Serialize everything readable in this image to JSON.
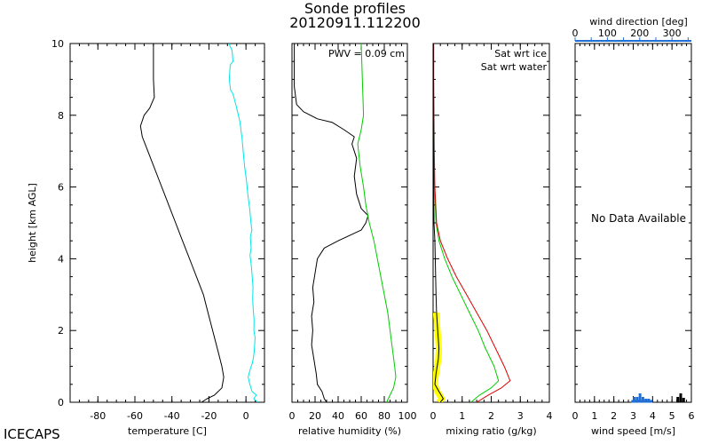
{
  "header": {
    "title": "Sonde profiles",
    "subtitle": "20120911.112200"
  },
  "footer": {
    "site_label": "ICECAPS"
  },
  "colors": {
    "temperature": "#00e5e5",
    "dewpoint": "#000000",
    "sat_ice": "#00cc00",
    "sat_water": "#dd0000",
    "mixing_ratio_highlight": "#ffff00",
    "wind_direction": "#1f6fd6"
  },
  "chart_data": [
    {
      "type": "line",
      "panel": "temperature",
      "xlabel": "temperature [C]",
      "ylabel": "height [km AGL]",
      "xlim": [
        -95,
        10
      ],
      "ylim": [
        0,
        10
      ],
      "xticks": [
        -80,
        -60,
        -40,
        -20,
        0
      ],
      "yticks": [
        0,
        2,
        4,
        6,
        8,
        10
      ],
      "series": [
        {
          "color": "#00e5e5",
          "points": [
            [
              -9.2,
              10
            ],
            [
              -7.5,
              9.8
            ],
            [
              -7,
              9.5
            ],
            [
              -8.5,
              9.4
            ],
            [
              -9,
              9
            ],
            [
              -8.3,
              8.7
            ],
            [
              -7,
              8.6
            ],
            [
              -6,
              8.4
            ],
            [
              -5,
              8.2
            ],
            [
              -3.2,
              7.8
            ],
            [
              -2.5,
              7.5
            ],
            [
              -2.2,
              7.4
            ],
            [
              -1.5,
              7
            ],
            [
              -0.8,
              6.6
            ],
            [
              0.2,
              6.2
            ],
            [
              1,
              5.8
            ],
            [
              2,
              5.4
            ],
            [
              2.7,
              5
            ],
            [
              3.2,
              4.8
            ],
            [
              2.4,
              4.6
            ],
            [
              2.8,
              4.3
            ],
            [
              2.2,
              4.1
            ],
            [
              2.9,
              3.8
            ],
            [
              3.4,
              3.5
            ],
            [
              3.8,
              3.2
            ],
            [
              3.6,
              2.9
            ],
            [
              3.9,
              2.6
            ],
            [
              4.4,
              2.3
            ],
            [
              4.3,
              2
            ],
            [
              4.9,
              1.8
            ],
            [
              4.6,
              1.5
            ],
            [
              4.2,
              1.3
            ],
            [
              3.5,
              1.1
            ],
            [
              2.2,
              0.9
            ],
            [
              1.2,
              0.7
            ],
            [
              2.1,
              0.5
            ],
            [
              3.3,
              0.3
            ],
            [
              5.6,
              0.2
            ],
            [
              4.2,
              0.1
            ],
            [
              6.6,
              0
            ]
          ]
        },
        {
          "color": "#000000",
          "points": [
            [
              -50,
              10
            ],
            [
              -50,
              9.5
            ],
            [
              -50,
              9
            ],
            [
              -49.5,
              8.5
            ],
            [
              -52,
              8.2
            ],
            [
              -55,
              8
            ],
            [
              -57,
              7.7
            ],
            [
              -56,
              7.4
            ],
            [
              -53,
              7
            ],
            [
              -50,
              6.6
            ],
            [
              -47,
              6.2
            ],
            [
              -44,
              5.8
            ],
            [
              -41,
              5.4
            ],
            [
              -38,
              5
            ],
            [
              -35,
              4.6
            ],
            [
              -32,
              4.2
            ],
            [
              -29,
              3.8
            ],
            [
              -26,
              3.4
            ],
            [
              -23,
              3
            ],
            [
              -21,
              2.6
            ],
            [
              -19,
              2.2
            ],
            [
              -17,
              1.8
            ],
            [
              -15,
              1.4
            ],
            [
              -13,
              1
            ],
            [
              -12,
              0.7
            ],
            [
              -13,
              0.4
            ],
            [
              -17,
              0.2
            ],
            [
              -21,
              0.1
            ],
            [
              -24,
              0
            ]
          ]
        }
      ]
    },
    {
      "type": "line",
      "panel": "relative_humidity",
      "xlabel": "relative humidity (%)",
      "xlim": [
        0,
        100
      ],
      "ylim": [
        0,
        10
      ],
      "xticks": [
        0,
        20,
        40,
        60,
        80,
        100
      ],
      "annotation": "PWV = 0.09 cm",
      "series": [
        {
          "color": "#000000",
          "points": [
            [
              2,
              10
            ],
            [
              2,
              8.8
            ],
            [
              4,
              8.3
            ],
            [
              10,
              8.1
            ],
            [
              22,
              7.9
            ],
            [
              35,
              7.8
            ],
            [
              45,
              7.6
            ],
            [
              54,
              7.4
            ],
            [
              52,
              7.2
            ],
            [
              56,
              6.8
            ],
            [
              54,
              6.3
            ],
            [
              56,
              5.8
            ],
            [
              60,
              5.4
            ],
            [
              66,
              5.2
            ],
            [
              64,
              5
            ],
            [
              60,
              4.8
            ],
            [
              40,
              4.5
            ],
            [
              28,
              4.3
            ],
            [
              22,
              4
            ],
            [
              20,
              3.6
            ],
            [
              18,
              3.2
            ],
            [
              19,
              2.8
            ],
            [
              17,
              2.4
            ],
            [
              18,
              2
            ],
            [
              17,
              1.6
            ],
            [
              19,
              1.2
            ],
            [
              21,
              0.8
            ],
            [
              22,
              0.5
            ],
            [
              26,
              0.3
            ],
            [
              28,
              0.1
            ],
            [
              30,
              0
            ]
          ]
        },
        {
          "color": "#00cc00",
          "points": [
            [
              60,
              10
            ],
            [
              61,
              9
            ],
            [
              62,
              8
            ],
            [
              60,
              7.6
            ],
            [
              57,
              7.2
            ],
            [
              59,
              6.6
            ],
            [
              62,
              6
            ],
            [
              64,
              5.5
            ],
            [
              67,
              5
            ],
            [
              71,
              4.5
            ],
            [
              74,
              4
            ],
            [
              77,
              3.5
            ],
            [
              80,
              3
            ],
            [
              83,
              2.5
            ],
            [
              85,
              2
            ],
            [
              87,
              1.5
            ],
            [
              89,
              1
            ],
            [
              90,
              0.7
            ],
            [
              88,
              0.4
            ],
            [
              85,
              0.2
            ],
            [
              82,
              0
            ]
          ]
        }
      ]
    },
    {
      "type": "line",
      "panel": "mixing_ratio",
      "xlabel": "mixing ratio (g/kg)",
      "xlim": [
        0,
        4
      ],
      "ylim": [
        0,
        10
      ],
      "xticks": [
        0,
        1,
        2,
        3,
        4
      ],
      "legend": [
        "Sat wrt ice",
        "Sat wrt water"
      ],
      "series": [
        {
          "color": "#00cc00",
          "points": [
            [
              0.01,
              10
            ],
            [
              0.01,
              9
            ],
            [
              0.02,
              8
            ],
            [
              0.03,
              7
            ],
            [
              0.05,
              6
            ],
            [
              0.1,
              5
            ],
            [
              0.2,
              4.5
            ],
            [
              0.4,
              4
            ],
            [
              0.65,
              3.5
            ],
            [
              0.95,
              3
            ],
            [
              1.25,
              2.5
            ],
            [
              1.55,
              2
            ],
            [
              1.8,
              1.5
            ],
            [
              2.1,
              1
            ],
            [
              2.25,
              0.6
            ],
            [
              2,
              0.4
            ],
            [
              1.6,
              0.2
            ],
            [
              1.3,
              0
            ]
          ]
        },
        {
          "color": "#dd0000",
          "points": [
            [
              0.02,
              10
            ],
            [
              0.02,
              9
            ],
            [
              0.03,
              8
            ],
            [
              0.04,
              7
            ],
            [
              0.06,
              6
            ],
            [
              0.12,
              5
            ],
            [
              0.25,
              4.5
            ],
            [
              0.5,
              4
            ],
            [
              0.8,
              3.5
            ],
            [
              1.15,
              3
            ],
            [
              1.5,
              2.5
            ],
            [
              1.85,
              2
            ],
            [
              2.15,
              1.5
            ],
            [
              2.45,
              1
            ],
            [
              2.65,
              0.6
            ],
            [
              2.35,
              0.4
            ],
            [
              1.9,
              0.2
            ],
            [
              1.5,
              0
            ]
          ]
        },
        {
          "color": "#ffff00",
          "points": [
            [
              0.1,
              2.5
            ],
            [
              0.15,
              2
            ],
            [
              0.2,
              1.5
            ],
            [
              0.18,
              1.2
            ],
            [
              0.1,
              0.8
            ],
            [
              0.05,
              0.5
            ],
            [
              0.15,
              0.3
            ],
            [
              0.3,
              0.1
            ],
            [
              0.2,
              0
            ]
          ]
        },
        {
          "color": "#000000",
          "points": [
            [
              0.01,
              10
            ],
            [
              0.01,
              8
            ],
            [
              0.02,
              6
            ],
            [
              0.03,
              5
            ],
            [
              0.06,
              4.5
            ],
            [
              0.1,
              3
            ],
            [
              0.12,
              2.5
            ],
            [
              0.16,
              2
            ],
            [
              0.2,
              1.5
            ],
            [
              0.18,
              1.2
            ],
            [
              0.1,
              0.8
            ],
            [
              0.06,
              0.5
            ],
            [
              0.2,
              0.3
            ],
            [
              0.35,
              0.1
            ],
            [
              0.25,
              0
            ]
          ]
        }
      ]
    },
    {
      "type": "scatter",
      "panel": "wind",
      "xlabel": "wind speed [m/s]",
      "xlim": [
        0,
        6
      ],
      "xticks": [
        0,
        1,
        2,
        3,
        4,
        5,
        6
      ],
      "top_axis_label": "wind direction [deg]",
      "top_axis_lim": [
        0,
        360
      ],
      "top_axis_ticks": [
        0,
        100,
        200,
        300
      ],
      "no_data_text": "No Data Available"
    }
  ]
}
